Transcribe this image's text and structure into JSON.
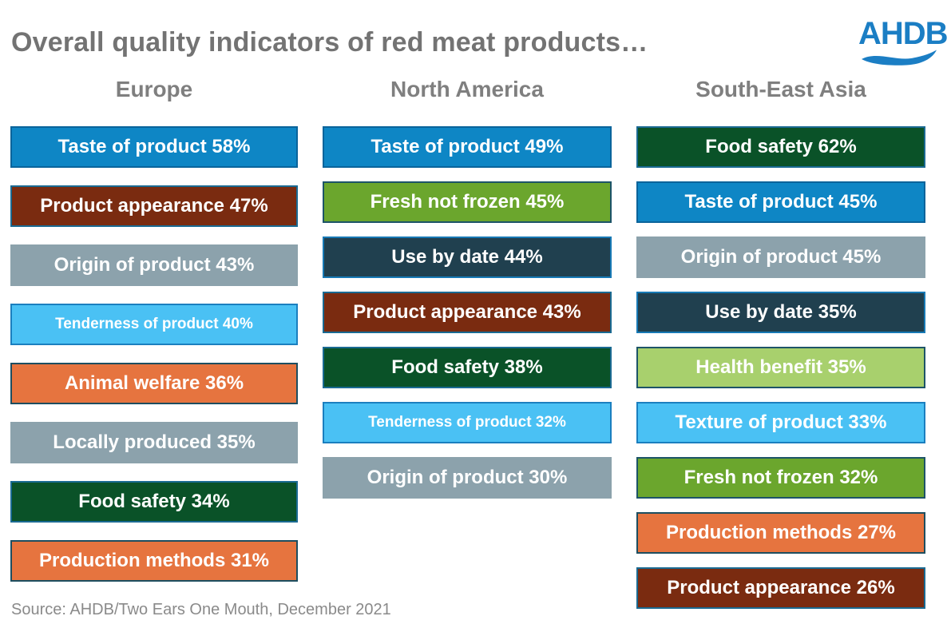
{
  "page": {
    "title": "Overall quality indicators of red meat products…",
    "source": "Source: AHDB/Two Ears One Mouth, December 2021",
    "logo": {
      "text": "AHDB",
      "color": "#1B7EC4"
    }
  },
  "colors": {
    "title_gray": "#737373",
    "header_gray": "#7F7F7F",
    "source_gray": "#8A8A8A",
    "brand_blue": "#1B7EC4",
    "taste_blue": "#0E86C5",
    "appearance_brown": "#7A2B10",
    "origin_gray": "#8CA2AC",
    "tenderness_light_blue": "#4AC1F4",
    "welfare_orange": "#E6743F",
    "food_safety_dark_green": "#0A5228",
    "fresh_green": "#6BA62D",
    "use_by_date_dark_teal": "#20404F",
    "health_light_green": "#A8D06D"
  },
  "chart_data": {
    "type": "bar",
    "title": "Overall quality indicators of red meat products…",
    "unit": "%",
    "value_range": [
      0,
      100
    ],
    "legend_position": "none",
    "note": "Ranked quality indicator labels with percentages, one column per region",
    "groups": [
      {
        "region": "Europe",
        "items": [
          {
            "label": "Taste of product",
            "value": 58,
            "bg": "#0E86C5",
            "border": "#0A649B"
          },
          {
            "label": "Product appearance",
            "value": 47,
            "bg": "#7A2B10",
            "border": "#1A6A92"
          },
          {
            "label": "Origin of product",
            "value": 43,
            "bg": "#8CA2AC",
            "border": "#8CA2AC"
          },
          {
            "label": "Tenderness of product",
            "value": 40,
            "bg": "#4AC1F4",
            "border": "#1B7FBF",
            "small": true
          },
          {
            "label": "Animal welfare",
            "value": 36,
            "bg": "#E6743F",
            "border": "#1D4E60"
          },
          {
            "label": "Locally produced",
            "value": 35,
            "bg": "#8CA2AC",
            "border": "#8CA2AC"
          },
          {
            "label": "Food safety",
            "value": 34,
            "bg": "#0A5228",
            "border": "#1A6A92"
          },
          {
            "label": "Production methods",
            "value": 31,
            "bg": "#E6743F",
            "border": "#1D4E60"
          }
        ]
      },
      {
        "region": "North America",
        "items": [
          {
            "label": "Taste of product",
            "value": 49,
            "bg": "#0E86C5",
            "border": "#0A649B"
          },
          {
            "label": "Fresh not frozen",
            "value": 45,
            "bg": "#6BA62D",
            "border": "#1D5468"
          },
          {
            "label": "Use by date",
            "value": 44,
            "bg": "#20404F",
            "border": "#1779B5"
          },
          {
            "label": "Product appearance",
            "value": 43,
            "bg": "#7A2B10",
            "border": "#1A6A92"
          },
          {
            "label": "Food safety",
            "value": 38,
            "bg": "#0A5228",
            "border": "#1A6A92"
          },
          {
            "label": "Tenderness of product",
            "value": 32,
            "bg": "#4AC1F4",
            "border": "#1B7FBF",
            "small": true
          },
          {
            "label": "Origin of product",
            "value": 30,
            "bg": "#8CA2AC",
            "border": "#8CA2AC"
          }
        ]
      },
      {
        "region": "South-East Asia",
        "items": [
          {
            "label": "Food safety",
            "value": 62,
            "bg": "#0A5228",
            "border": "#1A6A92"
          },
          {
            "label": "Taste of product",
            "value": 45,
            "bg": "#0E86C5",
            "border": "#0A649B"
          },
          {
            "label": "Origin of product",
            "value": 45,
            "bg": "#8CA2AC",
            "border": "#8CA2AC"
          },
          {
            "label": "Use by date",
            "value": 35,
            "bg": "#20404F",
            "border": "#1779B5"
          },
          {
            "label": "Health benefit",
            "value": 35,
            "bg": "#A8D06D",
            "border": "#1D5468"
          },
          {
            "label": "Texture of product",
            "value": 33,
            "bg": "#4AC1F4",
            "border": "#1B7FBF"
          },
          {
            "label": "Fresh not frozen",
            "value": 32,
            "bg": "#6BA62D",
            "border": "#1D5468"
          },
          {
            "label": "Production methods",
            "value": 27,
            "bg": "#E6743F",
            "border": "#1D4E60"
          },
          {
            "label": "Product appearance",
            "value": 26,
            "bg": "#7A2B10",
            "border": "#1A6A92"
          }
        ]
      }
    ]
  }
}
